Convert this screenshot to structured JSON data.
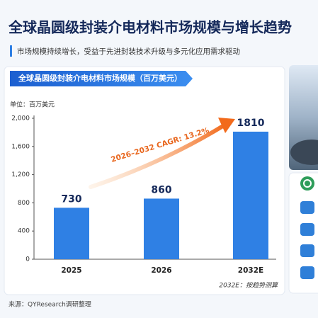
{
  "title": "全球晶圆级封装介电材料市场规模与增长趋势",
  "subtitle": "市场规模持续增长，受益于先进封装技术升级与多元化应用需求驱动",
  "source": "来源：QYResearch调研整理",
  "chart_data": {
    "type": "bar",
    "title": "全球晶圆级封装介电材料市场规模（百万美元）",
    "unit_label": "单位：百万美元",
    "categories": [
      "2025",
      "2026",
      "2032E"
    ],
    "values": [
      730,
      860,
      1810
    ],
    "color": "#2f80e4",
    "ylim": [
      0,
      2000
    ],
    "yticks": [
      0,
      400,
      800,
      {
        "value": 1200,
        "label": "1,200"
      },
      {
        "value": 1600,
        "label": "1,600"
      },
      {
        "value": 2000,
        "label": "2,000"
      }
    ],
    "grid": false,
    "annotation": "2026–2032 CAGR: 13.2%",
    "footnote": "2032E：按趋势测算"
  }
}
